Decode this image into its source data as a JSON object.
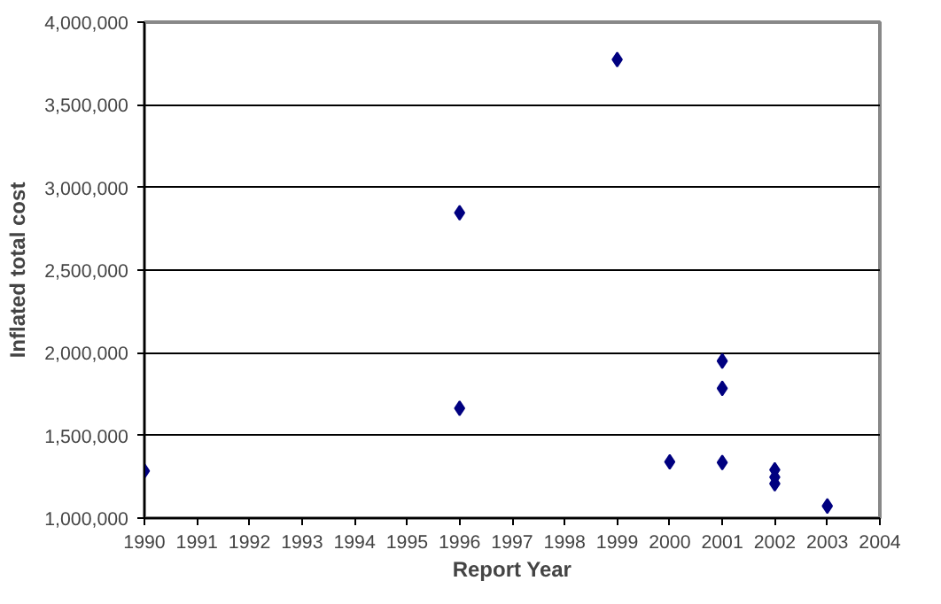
{
  "chart_data": {
    "type": "scatter",
    "xlabel": "Report Year",
    "ylabel": "Inflated total cost",
    "x": [
      1990,
      1996,
      1996,
      1999,
      2000,
      2001,
      2001,
      2001,
      2002,
      2002,
      2002,
      2003
    ],
    "values": [
      1285000,
      2847000,
      1664000,
      3774000,
      1340000,
      1950000,
      1785000,
      1336000,
      1292000,
      1248000,
      1208000,
      1073000
    ],
    "color": "#000080",
    "marker": "diamond",
    "grid": "y",
    "legend": false,
    "xlim": [
      1990,
      2004
    ],
    "xticks": [
      1990,
      1991,
      1992,
      1993,
      1994,
      1995,
      1996,
      1997,
      1998,
      1999,
      2000,
      2001,
      2002,
      2003,
      2004
    ],
    "ylim": [
      1000000,
      4000000
    ],
    "yticks": [
      {
        "value": 1000000,
        "label": "1,000,000"
      },
      {
        "value": 1500000,
        "label": "1,500,000"
      },
      {
        "value": 2000000,
        "label": "2,000,000"
      },
      {
        "value": 2500000,
        "label": "2,500,000"
      },
      {
        "value": 3000000,
        "label": "3,000,000"
      },
      {
        "value": 3500000,
        "label": "3,500,000"
      },
      {
        "value": 4000000,
        "label": "4,000,000"
      }
    ]
  }
}
